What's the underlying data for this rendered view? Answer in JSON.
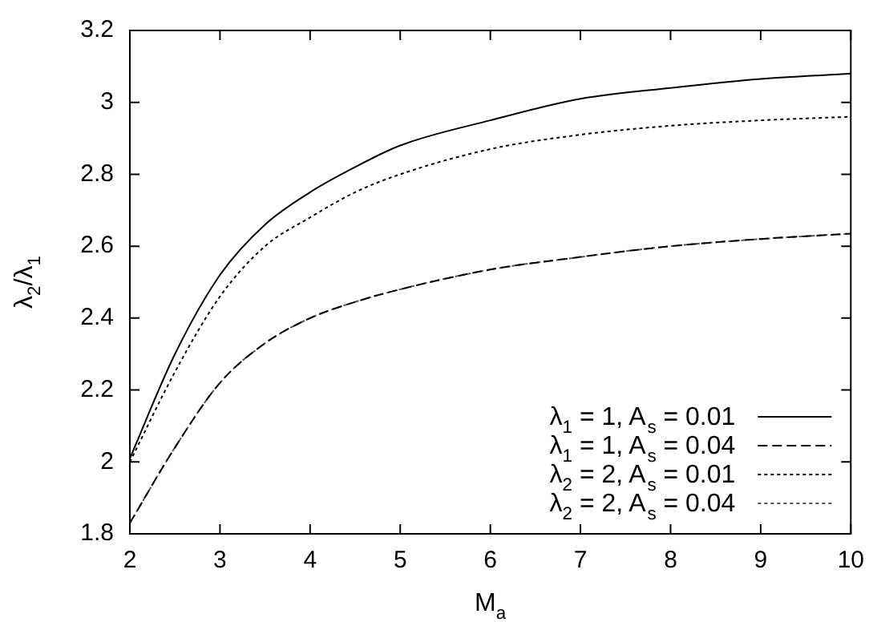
{
  "chart_data": {
    "type": "line",
    "xlabel": "M$_{a}$",
    "ylabel": "λ$_{2}$/λ$_{1}$",
    "x": [
      2,
      2.5,
      3,
      3.5,
      4,
      4.5,
      5,
      6,
      7,
      8,
      9,
      10
    ],
    "xlim": [
      2,
      10
    ],
    "xticks": [
      2,
      3,
      4,
      5,
      6,
      7,
      8,
      9,
      10
    ],
    "ylim": [
      1.8,
      3.2
    ],
    "yticks": [
      1.8,
      2,
      2.2,
      2.4,
      2.6,
      2.8,
      3,
      3.2
    ],
    "grid": false,
    "legend": "bottom right",
    "marker": "none",
    "series": [
      {
        "name": "λ$_{1}$ = 1, A$_{s}$ = 0.01",
        "color": "#000000",
        "line_style": "solid",
        "values": [
          2.01,
          2.3,
          2.52,
          2.66,
          2.75,
          2.82,
          2.88,
          2.95,
          3.01,
          3.04,
          3.065,
          3.08
        ]
      },
      {
        "name": "λ$_{1}$ = 1, A$_{s}$ = 0.04",
        "color": "#000000",
        "line_style": "dashed",
        "values": [
          1.83,
          2.04,
          2.22,
          2.33,
          2.4,
          2.445,
          2.48,
          2.535,
          2.57,
          2.6,
          2.62,
          2.635
        ]
      },
      {
        "name": "λ$_{2}$ = 2, A$_{s}$ = 0.01",
        "color": "#000000",
        "line_style": "dotted",
        "values": [
          2.0,
          2.25,
          2.46,
          2.6,
          2.68,
          2.75,
          2.8,
          2.87,
          2.91,
          2.935,
          2.95,
          2.96
        ]
      },
      {
        "name": "λ$_{2}$ = 2, A$_{s}$ = 0.04",
        "color": "#555555",
        "line_style": "dotted",
        "values": [
          1.83,
          2.04,
          2.22,
          2.33,
          2.4,
          2.445,
          2.48,
          2.535,
          2.57,
          2.6,
          2.62,
          2.635
        ]
      }
    ]
  }
}
